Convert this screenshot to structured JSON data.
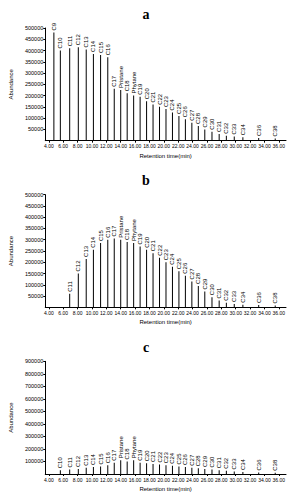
{
  "chart_data": [
    {
      "type": "bar",
      "title": "a",
      "xlabel": "Retention time(min)",
      "ylabel": "Abundance",
      "color": "#000000",
      "grid": false,
      "x": [
        4.7,
        5.6,
        6.9,
        8.1,
        9.2,
        10.2,
        11.2,
        12.2,
        13.1,
        14.0,
        14.9,
        15.8,
        16.7,
        17.6,
        18.5,
        19.4,
        20.3,
        21.2,
        22.1,
        23.0,
        23.9,
        24.8,
        25.7,
        26.7,
        27.7,
        28.7,
        29.8,
        31.0,
        33.2,
        35.5
      ],
      "values": [
        480000,
        400000,
        410000,
        415000,
        405000,
        385000,
        380000,
        370000,
        230000,
        225000,
        210000,
        200000,
        195000,
        175000,
        160000,
        150000,
        140000,
        125000,
        110000,
        95000,
        80000,
        65000,
        50000,
        40000,
        30000,
        22000,
        18000,
        15000,
        12000,
        10000
      ],
      "annotations": [
        "C9",
        "C10",
        "C11",
        "C12",
        "C13",
        "C14",
        "C15",
        "C16",
        "C17",
        "Pristane",
        "C18",
        "Phytane",
        "C19",
        "C20",
        "C21",
        "C22",
        "C23",
        "C24",
        "C25",
        "C26",
        "C27",
        "C28",
        "C29",
        "C30",
        "C31",
        "C32",
        "C33",
        "C34",
        "C36",
        "C38"
      ],
      "xlim": [
        3.5,
        37
      ],
      "xticks": [
        {
          "value": 4,
          "label": "4.00"
        },
        {
          "value": 6,
          "label": "6.00"
        },
        {
          "value": 8,
          "label": "8.00"
        },
        {
          "value": 10,
          "label": "10.00"
        },
        {
          "value": 12,
          "label": "12.00"
        },
        {
          "value": 14,
          "label": "14.00"
        },
        {
          "value": 16,
          "label": "16.00"
        },
        {
          "value": 18,
          "label": "18.00"
        },
        {
          "value": 20,
          "label": "20.00"
        },
        {
          "value": 22,
          "label": "22.00"
        },
        {
          "value": 24,
          "label": "24.00"
        },
        {
          "value": 26,
          "label": "26.00"
        },
        {
          "value": 28,
          "label": "28.00"
        },
        {
          "value": 30,
          "label": "30.00"
        },
        {
          "value": 32,
          "label": "32.00"
        },
        {
          "value": 34,
          "label": "34.00"
        },
        {
          "value": 36,
          "label": "36.00"
        }
      ],
      "ylim": [
        0,
        500000
      ],
      "yticks": [
        50000,
        100000,
        150000,
        200000,
        250000,
        300000,
        350000,
        400000,
        450000,
        500000
      ]
    },
    {
      "type": "bar",
      "title": "b",
      "xlabel": "Retention time(min)",
      "ylabel": "Abundance",
      "color": "#000000",
      "grid": false,
      "x": [
        6.9,
        8.1,
        9.2,
        10.2,
        11.2,
        12.2,
        13.1,
        14.0,
        14.9,
        15.8,
        16.7,
        17.6,
        18.5,
        19.4,
        20.3,
        21.2,
        22.1,
        23.0,
        23.9,
        24.8,
        25.7,
        26.7,
        27.7,
        28.7,
        29.8,
        31.0,
        33.2,
        35.5
      ],
      "values": [
        60000,
        150000,
        215000,
        255000,
        285000,
        300000,
        305000,
        300000,
        290000,
        285000,
        270000,
        255000,
        240000,
        220000,
        200000,
        180000,
        160000,
        140000,
        115000,
        95000,
        70000,
        45000,
        30000,
        20000,
        15000,
        12000,
        10000,
        8000
      ],
      "annotations": [
        "C11",
        "C12",
        "C13",
        "C14",
        "C15",
        "C16",
        "C17",
        "Pristane",
        "C18",
        "Phytane",
        "C19",
        "C20",
        "C21",
        "C22",
        "C23",
        "C24",
        "C25",
        "C26",
        "C27",
        "C28",
        "C29",
        "C30",
        "C31",
        "C32",
        "C33",
        "C34",
        "C36",
        "C38"
      ],
      "xlim": [
        3.5,
        37
      ],
      "xticks": [
        {
          "value": 4,
          "label": "4.00"
        },
        {
          "value": 6,
          "label": "6.00"
        },
        {
          "value": 8,
          "label": "8.00"
        },
        {
          "value": 10,
          "label": "10.00"
        },
        {
          "value": 12,
          "label": "12.00"
        },
        {
          "value": 14,
          "label": "14.00"
        },
        {
          "value": 16,
          "label": "16.00"
        },
        {
          "value": 18,
          "label": "18.00"
        },
        {
          "value": 20,
          "label": "20.00"
        },
        {
          "value": 22,
          "label": "22.00"
        },
        {
          "value": 24,
          "label": "24.00"
        },
        {
          "value": 26,
          "label": "26.00"
        },
        {
          "value": 28,
          "label": "28.00"
        },
        {
          "value": 30,
          "label": "30.00"
        },
        {
          "value": 32,
          "label": "32.00"
        },
        {
          "value": 34,
          "label": "34.00"
        },
        {
          "value": 36,
          "label": "36.00"
        }
      ],
      "ylim": [
        0,
        500000
      ],
      "yticks": [
        50000,
        100000,
        150000,
        200000,
        250000,
        300000,
        350000,
        400000,
        450000,
        500000
      ]
    },
    {
      "type": "bar",
      "title": "c",
      "xlabel": "Retention time(min)",
      "ylabel": "Abundance",
      "color": "#000000",
      "grid": false,
      "x": [
        5.6,
        6.9,
        8.1,
        9.2,
        10.2,
        11.2,
        12.2,
        13.1,
        14.0,
        14.9,
        15.8,
        16.7,
        17.6,
        18.5,
        19.4,
        20.3,
        21.2,
        22.1,
        23.0,
        23.9,
        24.8,
        25.7,
        26.7,
        27.7,
        28.7,
        29.8,
        31.0,
        33.2,
        35.5
      ],
      "values": [
        30000,
        35000,
        40000,
        50000,
        55000,
        60000,
        70000,
        90000,
        110000,
        100000,
        110000,
        90000,
        85000,
        80000,
        75000,
        70000,
        65000,
        60000,
        55000,
        50000,
        45000,
        40000,
        35000,
        30000,
        25000,
        20000,
        15000,
        12000,
        10000
      ],
      "annotations": [
        "C10",
        "C11",
        "C12",
        "C13",
        "C14",
        "C15",
        "C16",
        "C17",
        "Pristane",
        "C18",
        "Phytane",
        "C19",
        "C20",
        "C21",
        "C22",
        "C23",
        "C24",
        "C25",
        "C26",
        "C27",
        "C28",
        "C29",
        "C30",
        "C31",
        "C32",
        "C33",
        "C34",
        "C36",
        "C38"
      ],
      "xlim": [
        3.5,
        37
      ],
      "xticks": [
        {
          "value": 4,
          "label": "4.00"
        },
        {
          "value": 6,
          "label": "6.00"
        },
        {
          "value": 8,
          "label": "8.00"
        },
        {
          "value": 10,
          "label": "10.00"
        },
        {
          "value": 12,
          "label": "12.00"
        },
        {
          "value": 14,
          "label": "14.00"
        },
        {
          "value": 16,
          "label": "16.00"
        },
        {
          "value": 18,
          "label": "18.00"
        },
        {
          "value": 20,
          "label": "20.00"
        },
        {
          "value": 22,
          "label": "22.00"
        },
        {
          "value": 24,
          "label": "24.00"
        },
        {
          "value": 26,
          "label": "26.00"
        },
        {
          "value": 28,
          "label": "28.00"
        },
        {
          "value": 30,
          "label": "30.00"
        },
        {
          "value": 32,
          "label": "32.00"
        },
        {
          "value": 34,
          "label": "34.00"
        },
        {
          "value": 36,
          "label": "36.00"
        }
      ],
      "ylim": [
        0,
        900000
      ],
      "yticks": [
        100000,
        200000,
        300000,
        400000,
        500000,
        600000,
        700000,
        800000,
        900000
      ]
    }
  ]
}
